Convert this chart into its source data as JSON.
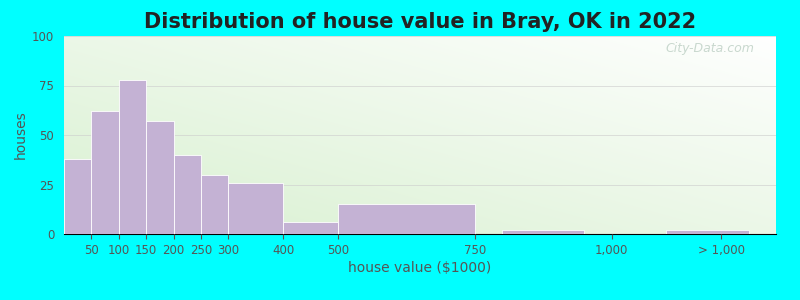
{
  "title": "Distribution of house value in Bray, OK in 2022",
  "xlabel": "house value ($1000)",
  "ylabel": "houses",
  "bar_color": "#c4b2d4",
  "bar_edgecolor": "#ffffff",
  "bar_linewidth": 0.6,
  "background_outer": "#00ffff",
  "ylim": [
    0,
    100
  ],
  "yticks": [
    0,
    25,
    50,
    75,
    100
  ],
  "xtick_labels": [
    "50",
    "100",
    "150",
    "200",
    "250",
    "300",
    "400",
    "500",
    "750",
    "1,000",
    "> 1,000"
  ],
  "xtick_positions": [
    1,
    2,
    3,
    4,
    5,
    6,
    8,
    10,
    15,
    20,
    24
  ],
  "bar_lefts": [
    0,
    1,
    2,
    3,
    4,
    5,
    6,
    8,
    10,
    16,
    22
  ],
  "bar_heights": [
    38,
    62,
    78,
    57,
    40,
    30,
    26,
    6,
    15,
    2,
    2
  ],
  "bar_widths": [
    1,
    1,
    1,
    1,
    1,
    1,
    2,
    2,
    5,
    3,
    3
  ],
  "xlim": [
    0,
    26
  ],
  "title_fontsize": 15,
  "axis_label_fontsize": 10,
  "tick_fontsize": 8.5,
  "grid_color": "#cccccc",
  "grid_alpha": 0.6,
  "watermark": "City-Data.com",
  "watermark_color": "#b8ccc0",
  "watermark_alpha": 0.75
}
